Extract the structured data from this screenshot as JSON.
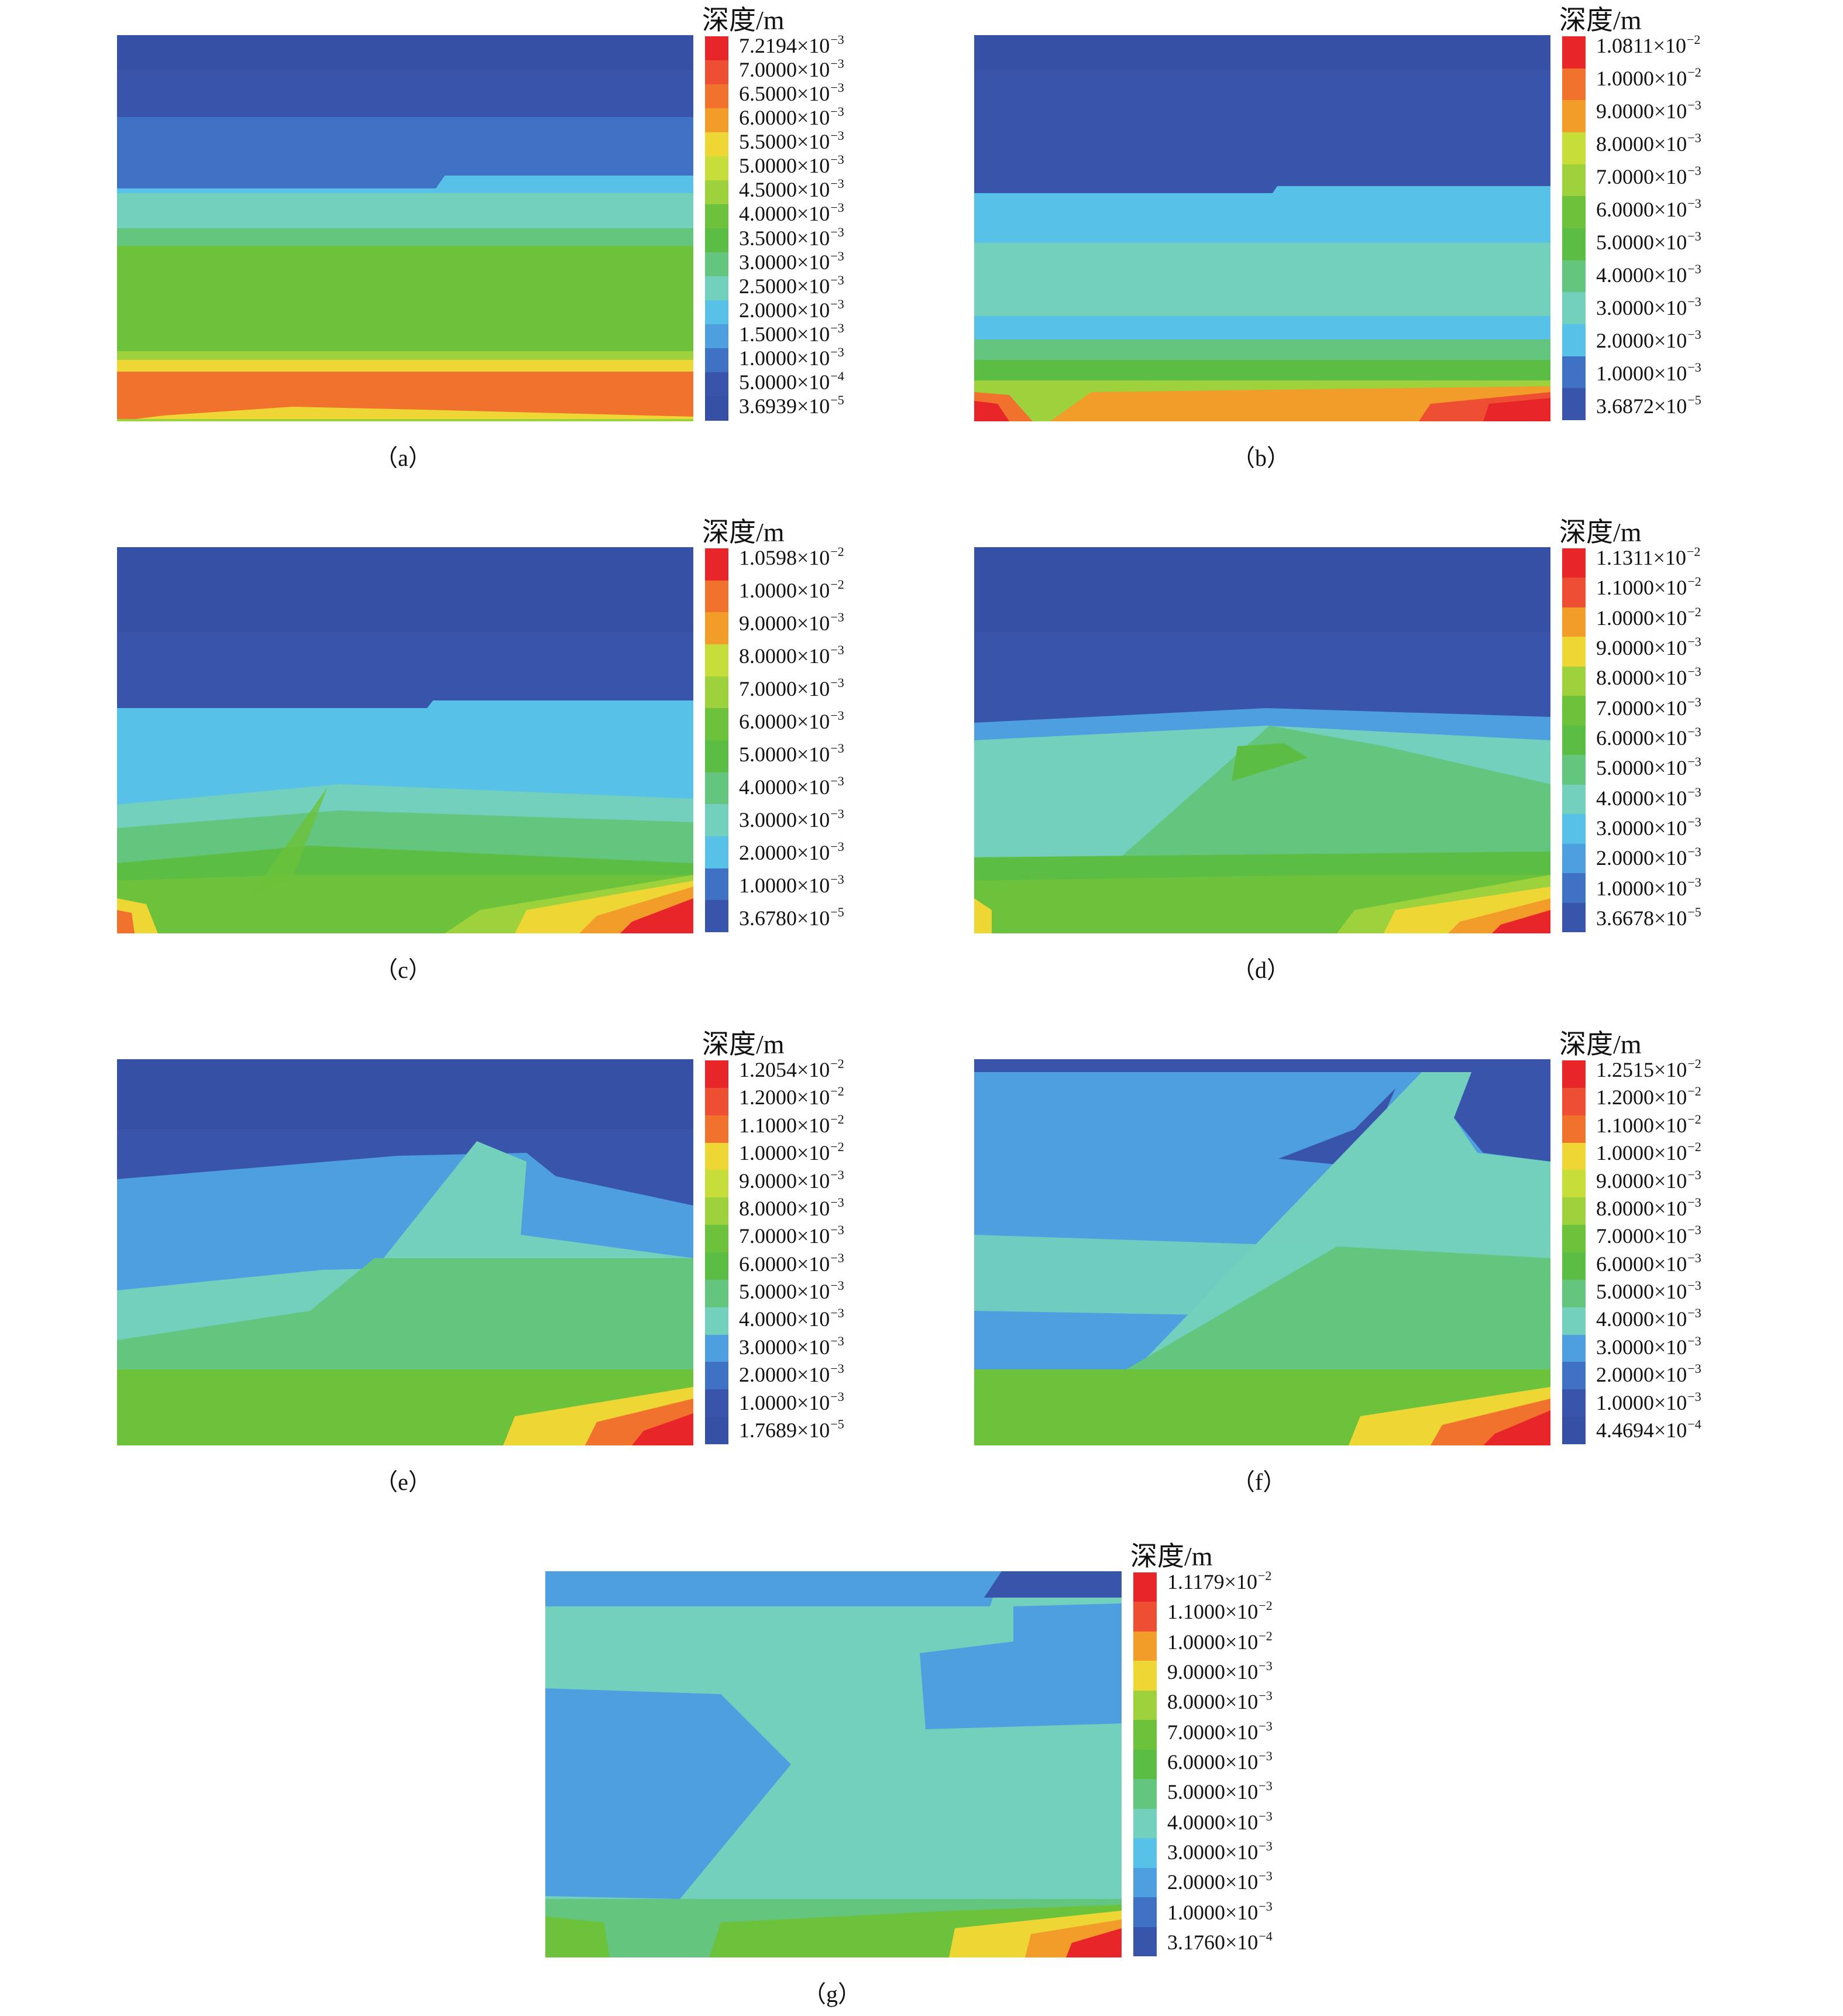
{
  "colorbar_title": "深度/m",
  "color_scale": [
    "#e8262a",
    "#ee4e32",
    "#f0722c",
    "#f29c2a",
    "#eed635",
    "#c7de3a",
    "#9dd23c",
    "#6cc23a",
    "#5cbd45",
    "#63c57e",
    "#72d0bd",
    "#58c1e8",
    "#4d9fe0",
    "#3f72c4",
    "#3954ab"
  ],
  "panels": [
    {
      "label": "（a）",
      "legend": [
        {
          "value": "7.2194×10",
          "exp": "−3",
          "color": "#e8262a"
        },
        {
          "value": "7.0000×10",
          "exp": "−3",
          "color": "#ee4e32"
        },
        {
          "value": "6.5000×10",
          "exp": "−3",
          "color": "#f0722c"
        },
        {
          "value": "6.0000×10",
          "exp": "−3",
          "color": "#f29c2a"
        },
        {
          "value": "5.5000×10",
          "exp": "−3",
          "color": "#eed635"
        },
        {
          "value": "5.0000×10",
          "exp": "−3",
          "color": "#c7de3a"
        },
        {
          "value": "4.5000×10",
          "exp": "−3",
          "color": "#9dd23c"
        },
        {
          "value": "4.0000×10",
          "exp": "−3",
          "color": "#6cc23a"
        },
        {
          "value": "3.5000×10",
          "exp": "−3",
          "color": "#5cbd45"
        },
        {
          "value": "3.0000×10",
          "exp": "−3",
          "color": "#63c57e"
        },
        {
          "value": "2.5000×10",
          "exp": "−3",
          "color": "#72d0bd"
        },
        {
          "value": "2.0000×10",
          "exp": "−3",
          "color": "#58c1e8"
        },
        {
          "value": "1.5000×10",
          "exp": "−3",
          "color": "#4d9fe0"
        },
        {
          "value": "1.0000×10",
          "exp": "−3",
          "color": "#3f72c4"
        },
        {
          "value": "5.0000×10",
          "exp": "−4",
          "color": "#3954ab"
        },
        {
          "value": "3.6939×10",
          "exp": "−5",
          "color": "#3550a5"
        }
      ]
    },
    {
      "label": "（b）",
      "legend": [
        {
          "value": "1.0811×10",
          "exp": "−2",
          "color": "#e8262a"
        },
        {
          "value": "1.0000×10",
          "exp": "−2",
          "color": "#f0722c"
        },
        {
          "value": "9.0000×10",
          "exp": "−3",
          "color": "#f29c2a"
        },
        {
          "value": "8.0000×10",
          "exp": "−3",
          "color": "#c7de3a"
        },
        {
          "value": "7.0000×10",
          "exp": "−3",
          "color": "#9dd23c"
        },
        {
          "value": "6.0000×10",
          "exp": "−3",
          "color": "#6cc23a"
        },
        {
          "value": "5.0000×10",
          "exp": "−3",
          "color": "#5cbd45"
        },
        {
          "value": "4.0000×10",
          "exp": "−3",
          "color": "#63c57e"
        },
        {
          "value": "3.0000×10",
          "exp": "−3",
          "color": "#72d0bd"
        },
        {
          "value": "2.0000×10",
          "exp": "−3",
          "color": "#58c1e8"
        },
        {
          "value": "1.0000×10",
          "exp": "−3",
          "color": "#3f72c4"
        },
        {
          "value": "3.6872×10",
          "exp": "−5",
          "color": "#3954ab"
        }
      ]
    },
    {
      "label": "（c）",
      "legend": [
        {
          "value": "1.0598×10",
          "exp": "−2",
          "color": "#e8262a"
        },
        {
          "value": "1.0000×10",
          "exp": "−2",
          "color": "#f0722c"
        },
        {
          "value": "9.0000×10",
          "exp": "−3",
          "color": "#f29c2a"
        },
        {
          "value": "8.0000×10",
          "exp": "−3",
          "color": "#c7de3a"
        },
        {
          "value": "7.0000×10",
          "exp": "−3",
          "color": "#9dd23c"
        },
        {
          "value": "6.0000×10",
          "exp": "−3",
          "color": "#6cc23a"
        },
        {
          "value": "5.0000×10",
          "exp": "−3",
          "color": "#5cbd45"
        },
        {
          "value": "4.0000×10",
          "exp": "−3",
          "color": "#63c57e"
        },
        {
          "value": "3.0000×10",
          "exp": "−3",
          "color": "#72d0bd"
        },
        {
          "value": "2.0000×10",
          "exp": "−3",
          "color": "#58c1e8"
        },
        {
          "value": "1.0000×10",
          "exp": "−3",
          "color": "#3f72c4"
        },
        {
          "value": "3.6780×10",
          "exp": "−5",
          "color": "#3954ab"
        }
      ]
    },
    {
      "label": "（d）",
      "legend": [
        {
          "value": "1.1311×10",
          "exp": "−2",
          "color": "#e8262a"
        },
        {
          "value": "1.1000×10",
          "exp": "−2",
          "color": "#ee4e32"
        },
        {
          "value": "1.0000×10",
          "exp": "−2",
          "color": "#f29c2a"
        },
        {
          "value": "9.0000×10",
          "exp": "−3",
          "color": "#eed635"
        },
        {
          "value": "8.0000×10",
          "exp": "−3",
          "color": "#9dd23c"
        },
        {
          "value": "7.0000×10",
          "exp": "−3",
          "color": "#6cc23a"
        },
        {
          "value": "6.0000×10",
          "exp": "−3",
          "color": "#5cbd45"
        },
        {
          "value": "5.0000×10",
          "exp": "−3",
          "color": "#63c57e"
        },
        {
          "value": "4.0000×10",
          "exp": "−3",
          "color": "#72d0bd"
        },
        {
          "value": "3.0000×10",
          "exp": "−3",
          "color": "#58c1e8"
        },
        {
          "value": "2.0000×10",
          "exp": "−3",
          "color": "#4d9fe0"
        },
        {
          "value": "1.0000×10",
          "exp": "−3",
          "color": "#3f72c4"
        },
        {
          "value": "3.6678×10",
          "exp": "−5",
          "color": "#3954ab"
        }
      ]
    },
    {
      "label": "（e）",
      "legend": [
        {
          "value": "1.2054×10",
          "exp": "−2",
          "color": "#e8262a"
        },
        {
          "value": "1.2000×10",
          "exp": "−2",
          "color": "#ee4e32"
        },
        {
          "value": "1.1000×10",
          "exp": "−2",
          "color": "#f0722c"
        },
        {
          "value": "1.0000×10",
          "exp": "−2",
          "color": "#eed635"
        },
        {
          "value": "9.0000×10",
          "exp": "−3",
          "color": "#c7de3a"
        },
        {
          "value": "8.0000×10",
          "exp": "−3",
          "color": "#9dd23c"
        },
        {
          "value": "7.0000×10",
          "exp": "−3",
          "color": "#6cc23a"
        },
        {
          "value": "6.0000×10",
          "exp": "−3",
          "color": "#5cbd45"
        },
        {
          "value": "5.0000×10",
          "exp": "−3",
          "color": "#63c57e"
        },
        {
          "value": "4.0000×10",
          "exp": "−3",
          "color": "#72d0bd"
        },
        {
          "value": "3.0000×10",
          "exp": "−3",
          "color": "#4d9fe0"
        },
        {
          "value": "2.0000×10",
          "exp": "−3",
          "color": "#3f72c4"
        },
        {
          "value": "1.0000×10",
          "exp": "−3",
          "color": "#3954ab"
        },
        {
          "value": "1.7689×10",
          "exp": "−5",
          "color": "#3550a5"
        }
      ]
    },
    {
      "label": "（f）",
      "legend": [
        {
          "value": "1.2515×10",
          "exp": "−2",
          "color": "#e8262a"
        },
        {
          "value": "1.2000×10",
          "exp": "−2",
          "color": "#ee4e32"
        },
        {
          "value": "1.1000×10",
          "exp": "−2",
          "color": "#f0722c"
        },
        {
          "value": "1.0000×10",
          "exp": "−2",
          "color": "#eed635"
        },
        {
          "value": "9.0000×10",
          "exp": "−3",
          "color": "#c7de3a"
        },
        {
          "value": "8.0000×10",
          "exp": "−3",
          "color": "#9dd23c"
        },
        {
          "value": "7.0000×10",
          "exp": "−3",
          "color": "#6cc23a"
        },
        {
          "value": "6.0000×10",
          "exp": "−3",
          "color": "#5cbd45"
        },
        {
          "value": "5.0000×10",
          "exp": "−3",
          "color": "#63c57e"
        },
        {
          "value": "4.0000×10",
          "exp": "−3",
          "color": "#72d0bd"
        },
        {
          "value": "3.0000×10",
          "exp": "−3",
          "color": "#4d9fe0"
        },
        {
          "value": "2.0000×10",
          "exp": "−3",
          "color": "#3f72c4"
        },
        {
          "value": "1.0000×10",
          "exp": "−3",
          "color": "#3954ab"
        },
        {
          "value": "4.4694×10",
          "exp": "−4",
          "color": "#3550a5"
        }
      ]
    },
    {
      "label": "（g）",
      "legend": [
        {
          "value": "1.1179×10",
          "exp": "−2",
          "color": "#e8262a"
        },
        {
          "value": "1.1000×10",
          "exp": "−2",
          "color": "#ee4e32"
        },
        {
          "value": "1.0000×10",
          "exp": "−2",
          "color": "#f29c2a"
        },
        {
          "value": "9.0000×10",
          "exp": "−3",
          "color": "#eed635"
        },
        {
          "value": "8.0000×10",
          "exp": "−3",
          "color": "#9dd23c"
        },
        {
          "value": "7.0000×10",
          "exp": "−3",
          "color": "#6cc23a"
        },
        {
          "value": "6.0000×10",
          "exp": "−3",
          "color": "#5cbd45"
        },
        {
          "value": "5.0000×10",
          "exp": "−3",
          "color": "#63c57e"
        },
        {
          "value": "4.0000×10",
          "exp": "−3",
          "color": "#72d0bd"
        },
        {
          "value": "3.0000×10",
          "exp": "−3",
          "color": "#58c1e8"
        },
        {
          "value": "2.0000×10",
          "exp": "−3",
          "color": "#4d9fe0"
        },
        {
          "value": "1.0000×10",
          "exp": "−3",
          "color": "#3f72c4"
        },
        {
          "value": "3.1760×10",
          "exp": "−4",
          "color": "#3954ab"
        }
      ]
    }
  ]
}
